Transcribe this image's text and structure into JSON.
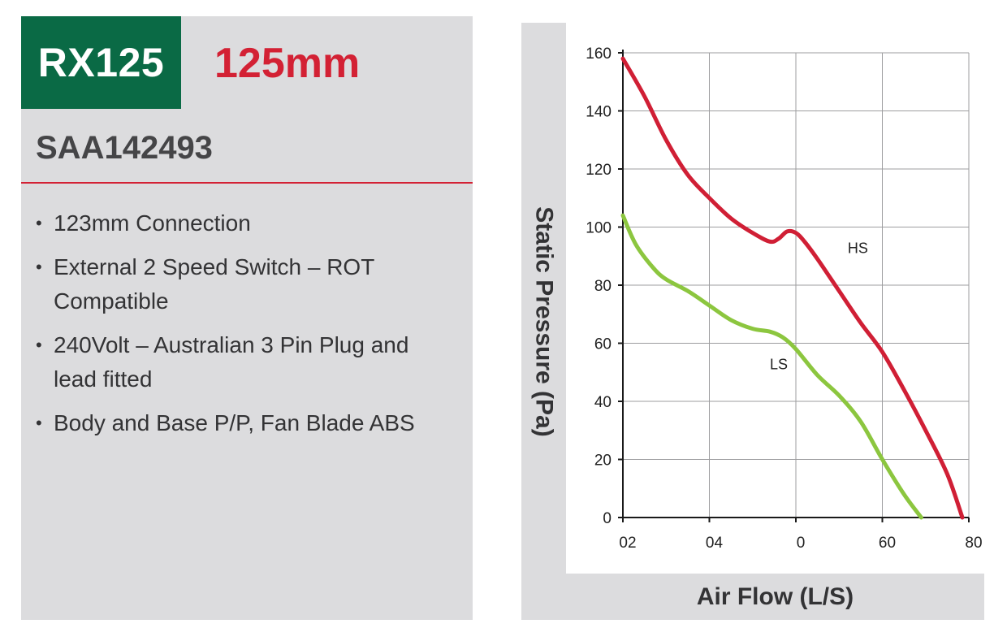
{
  "product": {
    "model": "RX125",
    "size": "125mm",
    "code": "SAA142493",
    "features": [
      "123mm Connection",
      "External 2 Speed Switch – ROT Compatible",
      "240Volt – Australian 3 Pin Plug and lead fitted",
      "Body and Base P/P, Fan Blade ABS"
    ]
  },
  "colors": {
    "brand_green": "#0a6a45",
    "accent_red": "#d32134",
    "hs_line": "#d01f35",
    "ls_line": "#8cc63f"
  },
  "chart_data": {
    "type": "line",
    "title": "",
    "xlabel": "Air Flow (L/S)",
    "ylabel": "Static Pressure (Pa)",
    "x_tick_labels": [
      "02",
      "04",
      "0",
      "60",
      "80"
    ],
    "y_ticks": [
      0,
      20,
      40,
      60,
      80,
      100,
      120,
      140,
      160
    ],
    "xlim": [
      0,
      80
    ],
    "ylim": [
      0,
      160
    ],
    "grid": true,
    "series": [
      {
        "name": "HS",
        "color": "#d01f35",
        "x": [
          0,
          5,
          10,
          15,
          20,
          25,
          30,
          34,
          36,
          38,
          40,
          42,
          45,
          50,
          55,
          60,
          65,
          70,
          75,
          78.5
        ],
        "y": [
          158,
          145,
          130,
          118,
          110,
          103,
          98,
          95,
          96,
          98.5,
          98,
          95,
          89,
          78,
          67,
          57,
          44,
          30,
          15,
          0
        ]
      },
      {
        "name": "LS",
        "color": "#8cc63f",
        "x": [
          0,
          3,
          7,
          10,
          15,
          20,
          25,
          30,
          34,
          37,
          40,
          45,
          50,
          55,
          60,
          65,
          69
        ],
        "y": [
          104,
          94,
          86,
          82,
          78,
          73,
          68,
          65,
          64,
          62,
          58,
          49,
          42,
          33,
          20,
          8,
          0
        ]
      }
    ],
    "series_label_positions": [
      {
        "name": "HS",
        "x": 52,
        "y": 91
      },
      {
        "name": "LS",
        "x": 34,
        "y": 51
      }
    ]
  }
}
